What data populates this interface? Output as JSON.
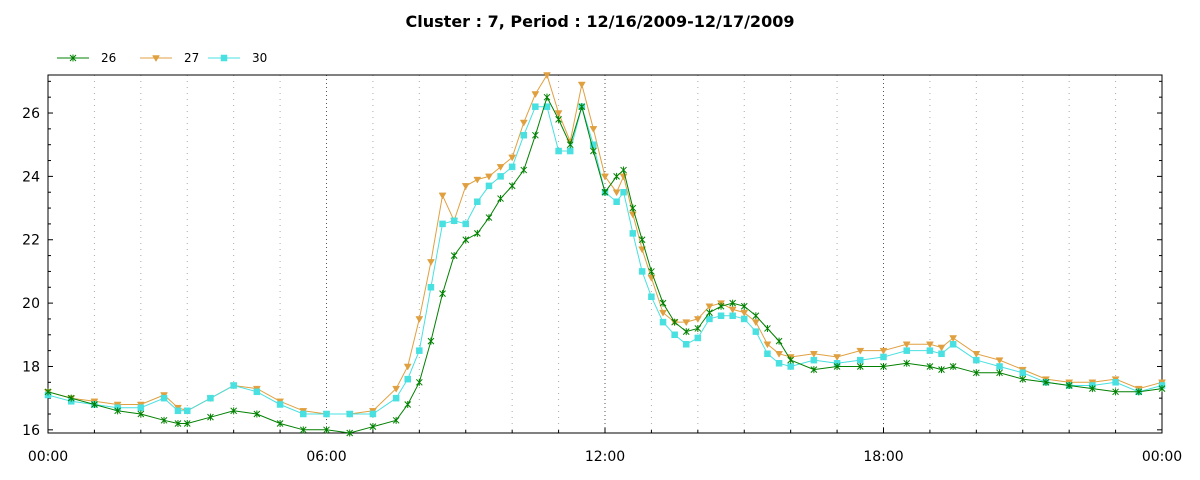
{
  "chart_data": {
    "type": "line",
    "title": "Cluster : 7, Period : 12/16/2009-12/17/2009",
    "xlabel": "",
    "ylabel": "",
    "x_unit": "hours",
    "xlim": [
      0,
      24
    ],
    "ylim": [
      15.9,
      27.2
    ],
    "x_tick_values": [
      0,
      6,
      12,
      18,
      24
    ],
    "x_tick_labels": [
      "00:00",
      "06:00",
      "12:00",
      "18:00",
      "00:00"
    ],
    "y_ticks": [
      16,
      18,
      20,
      22,
      24,
      26
    ],
    "grid": true,
    "legend_position": "top-left",
    "x": [
      0,
      0.5,
      1,
      1.5,
      2,
      2.5,
      2.8,
      3,
      3.5,
      4,
      4.5,
      5,
      5.5,
      6,
      6.5,
      7,
      7.5,
      7.75,
      8,
      8.25,
      8.5,
      8.75,
      9,
      9.25,
      9.5,
      9.75,
      10,
      10.25,
      10.5,
      10.75,
      11,
      11.25,
      11.5,
      11.75,
      12,
      12.25,
      12.4,
      12.6,
      12.8,
      13,
      13.25,
      13.5,
      13.75,
      14,
      14.25,
      14.5,
      14.75,
      15,
      15.25,
      15.5,
      15.75,
      16,
      16.5,
      17,
      17.5,
      18,
      18.5,
      19,
      19.25,
      19.5,
      20,
      20.5,
      21,
      21.5,
      22,
      22.5,
      23,
      23.5,
      24
    ],
    "series": [
      {
        "name": "26",
        "color": "#008000",
        "marker": "star",
        "values": [
          17.2,
          17.0,
          16.8,
          16.6,
          16.5,
          16.3,
          16.2,
          16.2,
          16.4,
          16.6,
          16.5,
          16.2,
          16.0,
          16.0,
          15.9,
          16.1,
          16.3,
          16.8,
          17.5,
          18.8,
          20.3,
          21.5,
          22.0,
          22.2,
          22.7,
          23.3,
          23.7,
          24.2,
          25.3,
          26.5,
          25.8,
          25.0,
          26.2,
          24.8,
          23.5,
          24.0,
          24.2,
          23.0,
          22.0,
          21.0,
          20.0,
          19.4,
          19.1,
          19.2,
          19.7,
          19.9,
          20.0,
          19.9,
          19.6,
          19.2,
          18.8,
          18.2,
          17.9,
          18.0,
          18.0,
          18.0,
          18.1,
          18.0,
          17.9,
          18.0,
          17.8,
          17.8,
          17.6,
          17.5,
          17.4,
          17.3,
          17.2,
          17.2,
          17.3
        ]
      },
      {
        "name": "27",
        "color": "#E0A040",
        "marker": "triangle-down",
        "values": [
          17.2,
          17.0,
          16.9,
          16.8,
          16.8,
          17.1,
          16.7,
          16.6,
          17.0,
          17.4,
          17.3,
          16.9,
          16.6,
          16.5,
          16.5,
          16.6,
          17.3,
          18.0,
          19.5,
          21.3,
          23.4,
          22.6,
          23.7,
          23.9,
          24.0,
          24.3,
          24.6,
          25.7,
          26.6,
          27.2,
          26.0,
          25.1,
          26.9,
          25.5,
          24.0,
          23.5,
          24.0,
          22.8,
          21.7,
          20.8,
          19.7,
          19.4,
          19.4,
          19.5,
          19.9,
          20.0,
          19.8,
          19.7,
          19.4,
          18.7,
          18.4,
          18.3,
          18.4,
          18.3,
          18.5,
          18.5,
          18.7,
          18.7,
          18.6,
          18.9,
          18.4,
          18.2,
          17.9,
          17.6,
          17.5,
          17.5,
          17.6,
          17.3,
          17.5
        ]
      },
      {
        "name": "30",
        "color": "#48E0E0",
        "marker": "square",
        "values": [
          17.1,
          16.9,
          16.8,
          16.7,
          16.7,
          17.0,
          16.6,
          16.6,
          17.0,
          17.4,
          17.2,
          16.8,
          16.5,
          16.5,
          16.5,
          16.5,
          17.0,
          17.6,
          18.5,
          20.5,
          22.5,
          22.6,
          22.5,
          23.2,
          23.7,
          24.0,
          24.3,
          25.3,
          26.2,
          26.2,
          24.8,
          24.8,
          26.2,
          25.0,
          23.5,
          23.2,
          23.5,
          22.2,
          21.0,
          20.2,
          19.4,
          19.0,
          18.7,
          18.9,
          19.5,
          19.6,
          19.6,
          19.5,
          19.1,
          18.4,
          18.1,
          18.0,
          18.2,
          18.1,
          18.2,
          18.3,
          18.5,
          18.5,
          18.4,
          18.7,
          18.2,
          18.0,
          17.8,
          17.5,
          17.4,
          17.4,
          17.5,
          17.2,
          17.4
        ]
      }
    ]
  }
}
